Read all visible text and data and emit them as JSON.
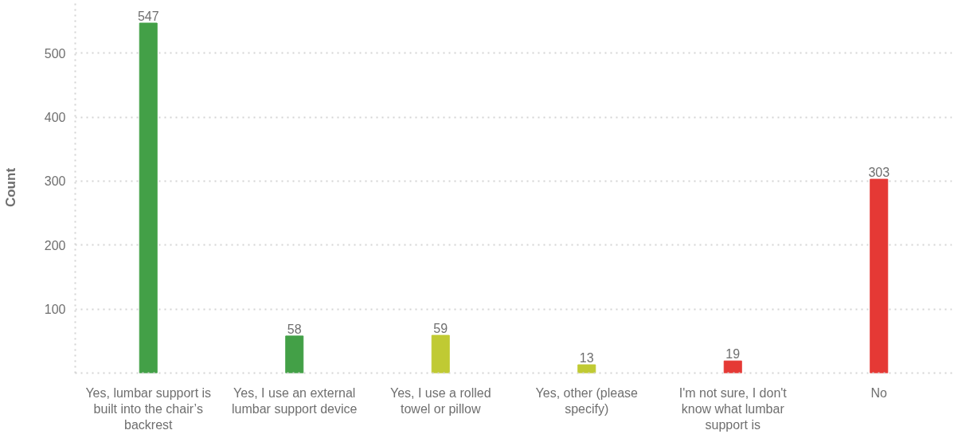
{
  "chart_data": {
    "type": "bar",
    "ylabel": "Count",
    "categories": [
      "Yes, lumbar support is built into the chair’s backrest",
      "Yes, I use an external lumbar support device",
      "Yes, I use a rolled towel or pillow",
      "Yes, other (please specify)",
      "I'm not sure, I don't know what lumbar support is",
      "No"
    ],
    "values": [
      547,
      58,
      59,
      13,
      19,
      303
    ],
    "colors": [
      "#43a047",
      "#43a047",
      "#c0ca33",
      "#c0ca33",
      "#e53935",
      "#e53935"
    ],
    "ylim": [
      0,
      580
    ],
    "yticks": [
      {
        "value": 0,
        "label": null
      },
      100,
      200,
      300,
      400,
      500
    ],
    "grid": "y",
    "data_labels": true
  }
}
